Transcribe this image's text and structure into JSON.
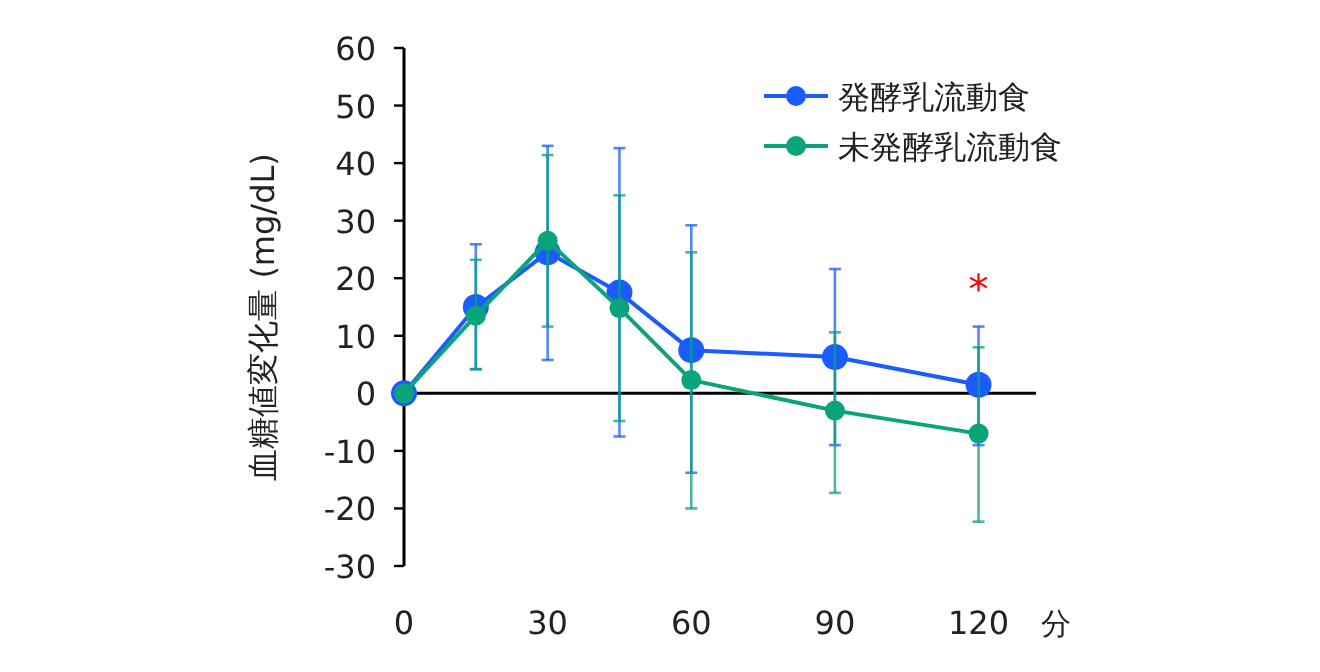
{
  "chart_data": {
    "type": "line",
    "xlabel": "分",
    "ylabel": "血糖値変化量 (mg/dL)",
    "x": [
      0,
      15,
      30,
      45,
      60,
      90,
      120
    ],
    "series": [
      {
        "name": "発酵乳流動食",
        "color": "#1a5cff",
        "values": [
          0,
          15,
          24.5,
          17.5,
          7.5,
          6.3,
          1.5
        ],
        "errors": [
          null,
          [
            4.2,
            25.9
          ],
          [
            5.8,
            43
          ],
          [
            -7.5,
            42.6
          ],
          [
            -13.8,
            29.2
          ],
          [
            -9,
            21.6
          ],
          [
            -9,
            11.6
          ]
        ]
      },
      {
        "name": "未発酵乳流動食",
        "color": "#0aa37a",
        "values": [
          0,
          13.5,
          26.5,
          14.8,
          2.3,
          -3,
          -7
        ],
        "errors": [
          null,
          [
            4.2,
            23.2
          ],
          [
            11.6,
            41.4
          ],
          [
            -4.8,
            34.4
          ],
          [
            -20,
            24.5
          ],
          [
            -17.3,
            10.6
          ],
          [
            -22.3,
            8
          ]
        ]
      }
    ],
    "xlim": [
      0,
      132
    ],
    "xticks": [
      0,
      30,
      60,
      90,
      120
    ],
    "ylim": [
      -30,
      60
    ],
    "yticks": [
      -30,
      -20,
      -10,
      0,
      10,
      20,
      30,
      40,
      50,
      60
    ],
    "ref_lines": [
      {
        "axis": "y",
        "value": 0,
        "color": "#000000"
      }
    ],
    "annotations": [
      "*"
    ],
    "marker": "circle",
    "legend": "top right",
    "grid": false
  }
}
